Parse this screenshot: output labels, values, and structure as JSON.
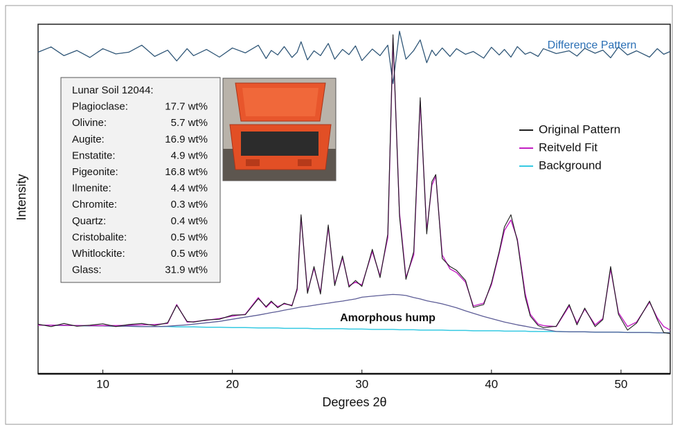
{
  "chart_data": {
    "type": "line",
    "x_label": "Degrees 2θ",
    "y_label": "Intensity",
    "xlim": [
      5,
      53.8
    ],
    "xticks": [
      10,
      20,
      30,
      40,
      50
    ],
    "ylim": [
      0,
      100
    ],
    "legend": "right",
    "x": [
      5,
      6,
      7,
      8,
      9,
      10,
      11,
      12,
      13,
      14,
      15,
      15.7,
      16.5,
      17,
      18,
      19,
      20,
      21,
      22,
      22.6,
      23,
      23.5,
      24,
      24.6,
      25,
      25.3,
      25.8,
      26.3,
      26.8,
      27.4,
      27.9,
      28.5,
      29,
      29.5,
      30,
      30.8,
      31.4,
      32,
      32.4,
      32.9,
      33.4,
      34,
      34.5,
      35,
      35.4,
      35.7,
      36.2,
      36.8,
      37.3,
      38,
      38.6,
      39.4,
      40,
      40.6,
      41,
      41.5,
      42,
      42.6,
      43,
      43.6,
      44,
      45,
      46,
      46.6,
      47.2,
      48,
      48.6,
      49.2,
      49.8,
      50.5,
      51.2,
      52.2,
      52.8,
      53.3,
      53.8
    ],
    "series": [
      {
        "name": "Original Pattern",
        "color": "#1e1e1e",
        "values": [
          14.2,
          13.5,
          14.4,
          13.6,
          13.9,
          14.3,
          13.5,
          14.1,
          14.4,
          13.8,
          14.6,
          19.6,
          15.0,
          14.8,
          15.4,
          15.6,
          16.8,
          16.9,
          21.5,
          19.2,
          20.8,
          18.9,
          20.2,
          19.4,
          24.5,
          45.5,
          23.0,
          30.7,
          22.8,
          42.6,
          25.2,
          33.7,
          24.8,
          26.7,
          25.0,
          35.6,
          27.5,
          40.0,
          97.0,
          45.0,
          27.0,
          35.0,
          79.0,
          40.0,
          55.0,
          57.0,
          33.0,
          30.7,
          29.6,
          26.7,
          19.0,
          19.8,
          26.0,
          35.0,
          42.0,
          45.5,
          38.0,
          22.0,
          16.5,
          13.8,
          13.2,
          13.6,
          19.8,
          14.0,
          18.8,
          13.5,
          15.5,
          30.7,
          17.0,
          12.5,
          14.5,
          20.8,
          15.5,
          11.8,
          11.5
        ]
      },
      {
        "name": "Reitveld Fit",
        "color": "#c21fc2",
        "values": [
          13.9,
          13.9,
          13.9,
          13.8,
          13.8,
          13.8,
          13.8,
          13.9,
          14.0,
          14.1,
          14.4,
          19.8,
          14.8,
          14.9,
          15.3,
          15.8,
          16.5,
          17.0,
          21.8,
          19.0,
          20.5,
          19.2,
          20.0,
          19.6,
          24.0,
          45.0,
          23.5,
          30.2,
          23.3,
          42.0,
          25.6,
          33.2,
          25.2,
          26.2,
          25.4,
          35.0,
          28.0,
          39.0,
          96.0,
          46.0,
          27.5,
          34.0,
          78.0,
          41.0,
          54.0,
          56.5,
          34.0,
          30.0,
          29.0,
          26.2,
          19.4,
          20.2,
          25.5,
          34.5,
          41.0,
          44.0,
          38.5,
          23.0,
          17.0,
          14.2,
          13.8,
          13.5,
          19.4,
          14.5,
          18.5,
          14.0,
          15.8,
          30.0,
          17.5,
          13.5,
          14.8,
          20.5,
          16.0,
          13.5,
          12.5
        ]
      },
      {
        "name": "Background",
        "color": "#35c9e2",
        "values": [
          13.9,
          13.9,
          13.8,
          13.8,
          13.7,
          13.7,
          13.6,
          13.6,
          13.5,
          13.5,
          13.5,
          13.4,
          13.4,
          13.4,
          13.3,
          13.3,
          13.2,
          13.2,
          13.1,
          13.1,
          13.1,
          13.1,
          13.0,
          13.0,
          13.0,
          13.0,
          13.0,
          12.9,
          12.9,
          12.9,
          12.9,
          12.9,
          12.8,
          12.8,
          12.8,
          12.7,
          12.7,
          12.7,
          12.7,
          12.6,
          12.6,
          12.6,
          12.5,
          12.5,
          12.5,
          12.5,
          12.5,
          12.4,
          12.4,
          12.4,
          12.3,
          12.3,
          12.3,
          12.3,
          12.2,
          12.2,
          12.2,
          12.2,
          12.1,
          12.1,
          12.1,
          12.1,
          12.0,
          12.0,
          12.0,
          11.9,
          11.9,
          11.9,
          11.9,
          11.8,
          11.8,
          11.8,
          11.7,
          11.7,
          11.7
        ]
      }
    ],
    "hump": {
      "label": "Amorphous hump",
      "color": "#5c5c96",
      "values": [
        13.9,
        13.9,
        13.8,
        13.8,
        13.7,
        13.7,
        13.6,
        13.6,
        13.5,
        13.5,
        13.6,
        13.8,
        14.0,
        14.2,
        14.6,
        15.0,
        15.6,
        16.2,
        16.8,
        17.2,
        17.5,
        17.8,
        18.2,
        18.6,
        18.9,
        19.1,
        19.3,
        19.6,
        19.9,
        20.2,
        20.5,
        20.8,
        21.1,
        21.4,
        21.9,
        22.2,
        22.4,
        22.6,
        22.7,
        22.6,
        22.4,
        21.8,
        21.4,
        20.9,
        20.6,
        20.4,
        20.0,
        19.4,
        18.9,
        18.0,
        17.3,
        16.4,
        15.8,
        15.2,
        14.8,
        14.4,
        14.0,
        13.6,
        13.3,
        12.9,
        12.8,
        12.1,
        12.0,
        12.0,
        12.0,
        11.9,
        11.9,
        11.9,
        11.9,
        11.8,
        11.8,
        11.8,
        11.7,
        11.7,
        11.7
      ]
    },
    "difference": {
      "label": "Difference Pattern",
      "color": "#2f5677",
      "label_color": "#2a6fb5",
      "values": [
        92,
        93.5,
        91,
        92.5,
        90.5,
        93,
        91.5,
        92,
        94,
        90.8,
        92.6,
        89.5,
        93,
        91,
        92.8,
        90.6,
        93.2,
        91.8,
        94,
        90.2,
        92.5,
        91.2,
        93.6,
        90.5,
        92,
        95,
        89.8,
        92.4,
        91,
        94.5,
        90,
        92.8,
        91.3,
        93.8,
        89.6,
        92.9,
        91,
        94,
        83,
        98,
        90,
        92.5,
        95.5,
        89,
        92.6,
        91,
        93.2,
        90.8,
        93,
        91.4,
        92.2,
        90.3,
        93.4,
        91.2,
        92.8,
        90.6,
        93.6,
        91.4,
        92,
        90.8,
        93,
        91.6,
        92.4,
        90.9,
        93.1,
        91.7,
        92.6,
        90.4,
        93.5,
        91.2,
        92.4,
        90.6,
        93,
        91.4,
        92.2
      ]
    },
    "composition": {
      "title": "Lunar Soil  12044:",
      "rows": [
        {
          "label": "Plagioclase:",
          "value": "17.7 wt%"
        },
        {
          "label": "Olivine:",
          "value": "5.7 wt%"
        },
        {
          "label": "Augite:",
          "value": "16.9 wt%"
        },
        {
          "label": "Enstatite:",
          "value": "4.9 wt%"
        },
        {
          "label": "Pigeonite:",
          "value": "16.8 wt%"
        },
        {
          "label": "Ilmenite:",
          "value": "4.4 wt%"
        },
        {
          "label": "Chromite:",
          "value": "0.3 wt%"
        },
        {
          "label": "Quartz:",
          "value": "0.4 wt%"
        },
        {
          "label": "Cristobalite:",
          "value": "0.5 wt%"
        },
        {
          "label": "Whitlockite:",
          "value": "0.5 wt%"
        },
        {
          "label": "Glass:",
          "value": "31.9 wt%"
        }
      ]
    }
  }
}
